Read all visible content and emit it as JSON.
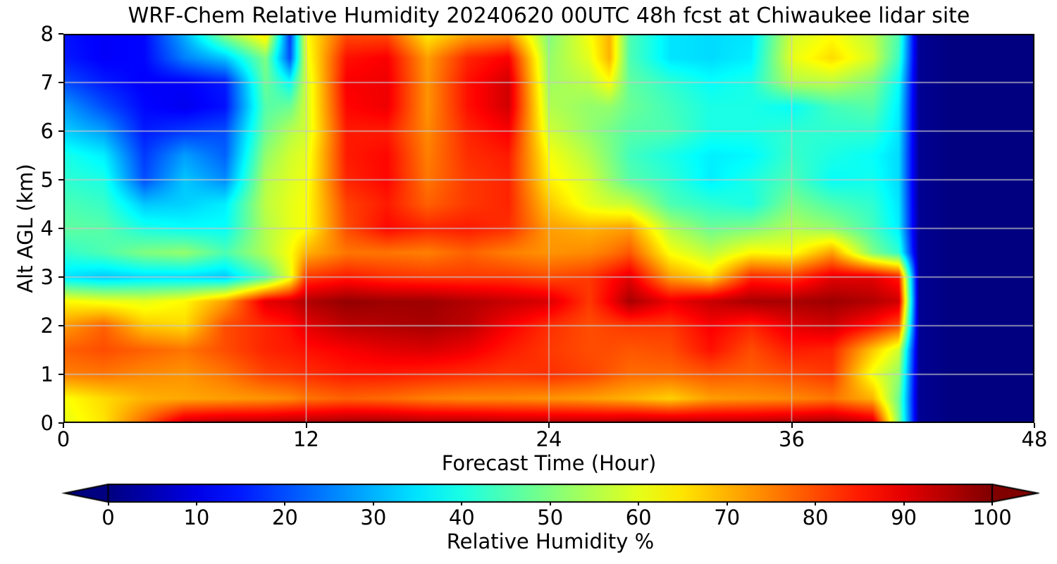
{
  "figure": {
    "title": "WRF-Chem Relative Humidity 20240620 00UTC 48h fcst at Chiwaukee lidar site"
  },
  "chart_data": {
    "type": "heatmap",
    "title": "WRF-Chem Relative Humidity 20240620 00UTC 48h fcst at Chiwaukee lidar site",
    "xlabel": "Forecast Time (Hour)",
    "ylabel": "Alt AGL (km)",
    "xlim": [
      0,
      48
    ],
    "ylim": [
      0,
      8
    ],
    "xticks": [
      0,
      12,
      24,
      36,
      48
    ],
    "yticks": [
      0,
      1,
      2,
      3,
      4,
      5,
      6,
      7,
      8
    ],
    "grid": true,
    "gridlines": {
      "x_at_hours": [
        12,
        24,
        36
      ],
      "y_at_km": [
        1,
        2,
        3,
        4,
        5,
        6,
        7
      ],
      "color": "#c8c8c8"
    },
    "colormap": "jet",
    "colorbar": {
      "label": "Relative Humidity %",
      "ticks": [
        0,
        10,
        20,
        30,
        40,
        50,
        60,
        70,
        80,
        90,
        100
      ],
      "vmin": 0,
      "vmax": 100,
      "extend": "both",
      "orientation": "horizontal"
    },
    "x_hours": [
      0,
      2,
      4,
      6,
      8,
      10,
      11.2,
      12,
      14,
      16,
      18,
      20,
      22,
      24,
      26,
      27,
      28,
      30,
      32,
      34,
      36,
      38,
      40,
      41.3,
      42.3,
      44,
      46,
      48
    ],
    "y_km": [
      0,
      0.5,
      1,
      1.5,
      2,
      2.5,
      3,
      3.5,
      4,
      4.5,
      5,
      5.5,
      6,
      6.5,
      7,
      7.5,
      8
    ],
    "values_rh_percent": [
      [
        60,
        65,
        78,
        93,
        95,
        95,
        96,
        96,
        97,
        97,
        96,
        96,
        95,
        95,
        95,
        95,
        96,
        96,
        95,
        95,
        96,
        97,
        93,
        50,
        2,
        0,
        0,
        0
      ],
      [
        62,
        66,
        70,
        71,
        72,
        73,
        74,
        76,
        78,
        77,
        75,
        74,
        74,
        73,
        72,
        71,
        70,
        67,
        72,
        73,
        74,
        76,
        70,
        48,
        2,
        0,
        0,
        0
      ],
      [
        75,
        76,
        74,
        73,
        76,
        81,
        82,
        83,
        85,
        85,
        84,
        83,
        82,
        83,
        81,
        79,
        77,
        77,
        79,
        78,
        80,
        82,
        61,
        52,
        2,
        0,
        0,
        0
      ],
      [
        78,
        80,
        78,
        76,
        80,
        84,
        85,
        86,
        88,
        90,
        91,
        89,
        85,
        82,
        80,
        80,
        79,
        80,
        86,
        80,
        85,
        84,
        68,
        58,
        2,
        0,
        0,
        0
      ],
      [
        72,
        78,
        68,
        66,
        80,
        84,
        86,
        90,
        94,
        95,
        96,
        94,
        88,
        83,
        80,
        81,
        82,
        82,
        88,
        84,
        90,
        92,
        86,
        80,
        2,
        0,
        0,
        0
      ],
      [
        63,
        61,
        60,
        63,
        72,
        90,
        92,
        95,
        98,
        97,
        97,
        95,
        93,
        91,
        82,
        88,
        96,
        89,
        93,
        96,
        96,
        97,
        95,
        92,
        2,
        0,
        0,
        0
      ],
      [
        35,
        32,
        34,
        34,
        32,
        45,
        60,
        82,
        85,
        83,
        82,
        82,
        82,
        80,
        82,
        86,
        90,
        72,
        66,
        84,
        82,
        90,
        90,
        85,
        2,
        0,
        0,
        0
      ],
      [
        42,
        45,
        50,
        52,
        45,
        55,
        62,
        70,
        76,
        76,
        75,
        78,
        75,
        73,
        74,
        76,
        79,
        62,
        56,
        63,
        62,
        72,
        50,
        42,
        2,
        0,
        0,
        0
      ],
      [
        47,
        46,
        40,
        38,
        38,
        55,
        60,
        62,
        80,
        87,
        84,
        85,
        83,
        72,
        70,
        71,
        72,
        55,
        48,
        50,
        55,
        52,
        44,
        36,
        2,
        0,
        0,
        0
      ],
      [
        45,
        43,
        32,
        33,
        36,
        56,
        60,
        62,
        81,
        85,
        78,
        82,
        84,
        68,
        60,
        58,
        57,
        45,
        42,
        40,
        50,
        45,
        42,
        35,
        2,
        0,
        0,
        0
      ],
      [
        42,
        40,
        20,
        32,
        26,
        55,
        59,
        61,
        84,
        87,
        76,
        82,
        84,
        64,
        58,
        52,
        46,
        42,
        36,
        40,
        45,
        38,
        39,
        34,
        2,
        0,
        0,
        0
      ],
      [
        40,
        36,
        18,
        28,
        22,
        52,
        58,
        60,
        85,
        87,
        75,
        83,
        85,
        62,
        55,
        50,
        44,
        40,
        36,
        37,
        43,
        40,
        38,
        34,
        2,
        0,
        0,
        0
      ],
      [
        33,
        28,
        15,
        18,
        20,
        48,
        55,
        58,
        85,
        85,
        74,
        84,
        88,
        58,
        52,
        49,
        46,
        45,
        40,
        40,
        42,
        42,
        42,
        35,
        2,
        0,
        0,
        0
      ],
      [
        28,
        20,
        13,
        11,
        14,
        46,
        48,
        58,
        87,
        89,
        73,
        86,
        92,
        55,
        52,
        52,
        48,
        44,
        40,
        40,
        38,
        44,
        46,
        36,
        2,
        0,
        0,
        0
      ],
      [
        20,
        15,
        12,
        12,
        15,
        48,
        38,
        58,
        88,
        89,
        73,
        86,
        92,
        53,
        56,
        62,
        47,
        42,
        38,
        40,
        55,
        56,
        50,
        38,
        2,
        0,
        0,
        0
      ],
      [
        15,
        12,
        13,
        25,
        32,
        50,
        20,
        60,
        86,
        88,
        72,
        84,
        88,
        52,
        60,
        70,
        45,
        35,
        34,
        36,
        60,
        66,
        58,
        43,
        2,
        0,
        0,
        0
      ],
      [
        14,
        12,
        13,
        30,
        52,
        66,
        18,
        62,
        80,
        80,
        64,
        71,
        73,
        50,
        62,
        70,
        45,
        35,
        34,
        35,
        58,
        62,
        56,
        45,
        2,
        0,
        0,
        0
      ]
    ]
  }
}
